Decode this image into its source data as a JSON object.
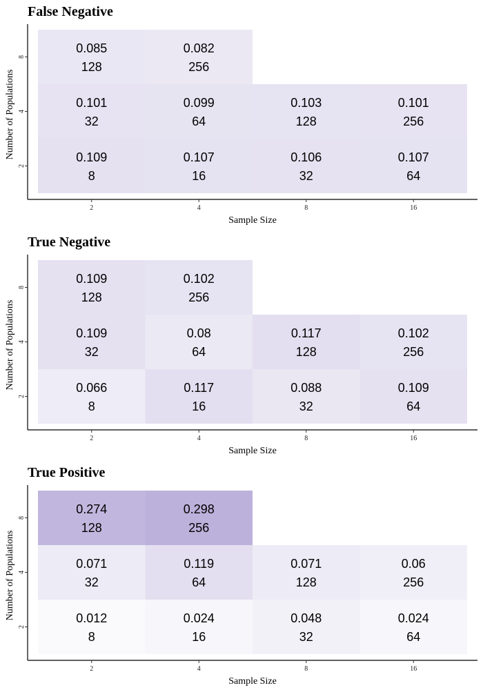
{
  "colors": {
    "low": "#fafafc",
    "high": "#bcb1db",
    "axis": "#000000",
    "text": "#000000"
  },
  "chart_data": [
    {
      "type": "heatmap",
      "title": "False Negative",
      "xlabel": "Sample Size",
      "ylabel": "Number of Populations",
      "x_ticks": [
        "2",
        "4",
        "8",
        "16"
      ],
      "y_ticks": [
        "2",
        "4",
        "8"
      ],
      "grid": false,
      "cells": [
        {
          "x": "2",
          "y": "8",
          "value": 0.085,
          "n": "128",
          "value_label": "0.085"
        },
        {
          "x": "4",
          "y": "8",
          "value": 0.082,
          "n": "256",
          "value_label": "0.082"
        },
        {
          "x": "2",
          "y": "4",
          "value": 0.101,
          "n": "32",
          "value_label": "0.101"
        },
        {
          "x": "4",
          "y": "4",
          "value": 0.099,
          "n": "64",
          "value_label": "0.099"
        },
        {
          "x": "8",
          "y": "4",
          "value": 0.103,
          "n": "128",
          "value_label": "0.103"
        },
        {
          "x": "16",
          "y": "4",
          "value": 0.101,
          "n": "256",
          "value_label": "0.101"
        },
        {
          "x": "2",
          "y": "2",
          "value": 0.109,
          "n": "8",
          "value_label": "0.109"
        },
        {
          "x": "4",
          "y": "2",
          "value": 0.107,
          "n": "16",
          "value_label": "0.107"
        },
        {
          "x": "8",
          "y": "2",
          "value": 0.106,
          "n": "32",
          "value_label": "0.106"
        },
        {
          "x": "16",
          "y": "2",
          "value": 0.107,
          "n": "64",
          "value_label": "0.107"
        }
      ]
    },
    {
      "type": "heatmap",
      "title": "True Negative",
      "xlabel": "Sample Size",
      "ylabel": "Number of Populations",
      "x_ticks": [
        "2",
        "4",
        "8",
        "16"
      ],
      "y_ticks": [
        "2",
        "4",
        "8"
      ],
      "grid": false,
      "cells": [
        {
          "x": "2",
          "y": "8",
          "value": 0.109,
          "n": "128",
          "value_label": "0.109"
        },
        {
          "x": "4",
          "y": "8",
          "value": 0.102,
          "n": "256",
          "value_label": "0.102"
        },
        {
          "x": "2",
          "y": "4",
          "value": 0.109,
          "n": "32",
          "value_label": "0.109"
        },
        {
          "x": "4",
          "y": "4",
          "value": 0.08,
          "n": "64",
          "value_label": "0.08"
        },
        {
          "x": "8",
          "y": "4",
          "value": 0.117,
          "n": "128",
          "value_label": "0.117"
        },
        {
          "x": "16",
          "y": "4",
          "value": 0.102,
          "n": "256",
          "value_label": "0.102"
        },
        {
          "x": "2",
          "y": "2",
          "value": 0.066,
          "n": "8",
          "value_label": "0.066"
        },
        {
          "x": "4",
          "y": "2",
          "value": 0.117,
          "n": "16",
          "value_label": "0.117"
        },
        {
          "x": "8",
          "y": "2",
          "value": 0.088,
          "n": "32",
          "value_label": "0.088"
        },
        {
          "x": "16",
          "y": "2",
          "value": 0.109,
          "n": "64",
          "value_label": "0.109"
        }
      ]
    },
    {
      "type": "heatmap",
      "title": "True Positive",
      "xlabel": "Sample Size",
      "ylabel": "Number of Populations",
      "x_ticks": [
        "2",
        "4",
        "8",
        "16"
      ],
      "y_ticks": [
        "2",
        "4",
        "8"
      ],
      "grid": false,
      "cells": [
        {
          "x": "2",
          "y": "8",
          "value": 0.274,
          "n": "128",
          "value_label": "0.274"
        },
        {
          "x": "4",
          "y": "8",
          "value": 0.298,
          "n": "256",
          "value_label": "0.298"
        },
        {
          "x": "2",
          "y": "4",
          "value": 0.071,
          "n": "32",
          "value_label": "0.071"
        },
        {
          "x": "4",
          "y": "4",
          "value": 0.119,
          "n": "64",
          "value_label": "0.119"
        },
        {
          "x": "8",
          "y": "4",
          "value": 0.071,
          "n": "128",
          "value_label": "0.071"
        },
        {
          "x": "16",
          "y": "4",
          "value": 0.06,
          "n": "256",
          "value_label": "0.06"
        },
        {
          "x": "2",
          "y": "2",
          "value": 0.012,
          "n": "8",
          "value_label": "0.012"
        },
        {
          "x": "4",
          "y": "2",
          "value": 0.024,
          "n": "16",
          "value_label": "0.024"
        },
        {
          "x": "8",
          "y": "2",
          "value": 0.048,
          "n": "32",
          "value_label": "0.048"
        },
        {
          "x": "16",
          "y": "2",
          "value": 0.024,
          "n": "64",
          "value_label": "0.024"
        }
      ]
    }
  ]
}
